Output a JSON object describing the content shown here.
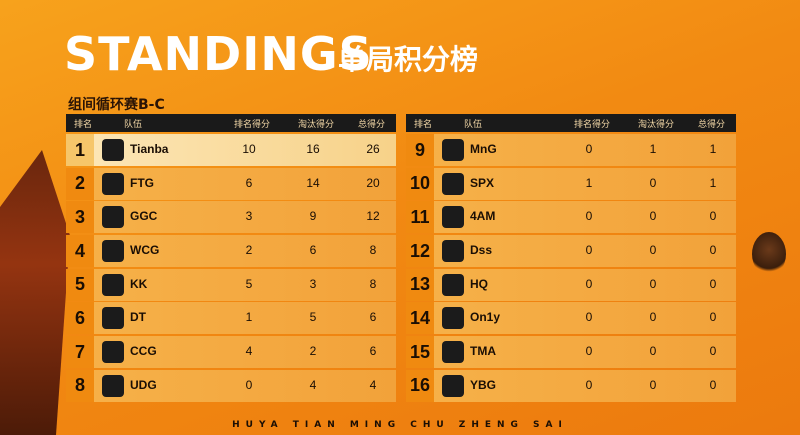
{
  "header": {
    "title": "STANDINGS",
    "subtitle_cn": "单局积分榜",
    "group": "组间循环赛B-C"
  },
  "columns": {
    "rank": "排名",
    "team": "队伍",
    "placement": "排名得分",
    "kills": "淘汰得分",
    "total": "总得分"
  },
  "left_rows": [
    {
      "rank": "1",
      "team": "Tianba",
      "placement": "10",
      "kills": "16",
      "total": "26",
      "logo": "Tianba"
    },
    {
      "rank": "2",
      "team": "FTG",
      "placement": "6",
      "kills": "14",
      "total": "20",
      "logo": "FTG"
    },
    {
      "rank": "3",
      "team": "GGC",
      "placement": "3",
      "kills": "9",
      "total": "12",
      "logo": "GGC"
    },
    {
      "rank": "4",
      "team": "WCG",
      "placement": "2",
      "kills": "6",
      "total": "8",
      "logo": "WCG"
    },
    {
      "rank": "5",
      "team": "KK",
      "placement": "5",
      "kills": "3",
      "total": "8",
      "logo": "KK"
    },
    {
      "rank": "6",
      "team": "DT",
      "placement": "1",
      "kills": "5",
      "total": "6",
      "logo": "DT"
    },
    {
      "rank": "7",
      "team": "CCG",
      "placement": "4",
      "kills": "2",
      "total": "6",
      "logo": "CCG"
    },
    {
      "rank": "8",
      "team": "UDG",
      "placement": "0",
      "kills": "4",
      "total": "4",
      "logo": "UDG"
    }
  ],
  "right_rows": [
    {
      "rank": "9",
      "team": "MnG",
      "placement": "0",
      "kills": "1",
      "total": "1",
      "logo": "MnG"
    },
    {
      "rank": "10",
      "team": "SPX",
      "placement": "1",
      "kills": "0",
      "total": "1",
      "logo": "SPX"
    },
    {
      "rank": "11",
      "team": "4AM",
      "placement": "0",
      "kills": "0",
      "total": "0",
      "logo": "4AM"
    },
    {
      "rank": "12",
      "team": "Dss",
      "placement": "0",
      "kills": "0",
      "total": "0",
      "logo": "Dss"
    },
    {
      "rank": "13",
      "team": "HQ",
      "placement": "0",
      "kills": "0",
      "total": "0",
      "logo": "HQ"
    },
    {
      "rank": "14",
      "team": "On1y",
      "placement": "0",
      "kills": "0",
      "total": "0",
      "logo": "On1y"
    },
    {
      "rank": "15",
      "team": "TMA",
      "placement": "0",
      "kills": "0",
      "total": "0",
      "logo": "TMA"
    },
    {
      "rank": "16",
      "team": "YBG",
      "placement": "0",
      "kills": "0",
      "total": "0",
      "logo": "YBG"
    }
  ],
  "footer": "HUYA TIAN MING CHU ZHENG SAI",
  "colors": {
    "accent": "#f08a10",
    "header_bg": "#1a1a1a",
    "highlight": "#fce7b8"
  }
}
